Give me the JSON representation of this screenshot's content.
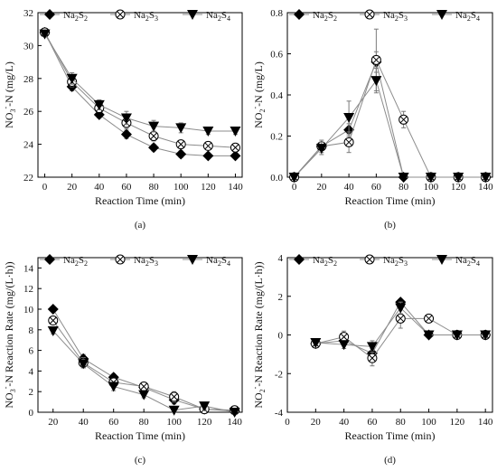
{
  "colors": {
    "series_line": "#8c8c8c",
    "marker": "#000000",
    "axis": "#000000",
    "error_bar": "#7a7a7a"
  },
  "chart_data": [
    {
      "type": "line",
      "caption": "(a)",
      "xlabel": "Reaction Time (min)",
      "ylabel": {
        "base": "NO",
        "sub": "3",
        "sup": "-",
        "rest": "-N  (mg/L)"
      },
      "xlim": [
        -5,
        145
      ],
      "ylim": [
        22,
        32
      ],
      "xticks": [
        0,
        20,
        40,
        60,
        80,
        100,
        120,
        140
      ],
      "yticks": [
        22,
        24,
        26,
        28,
        30,
        32
      ],
      "x": [
        0,
        20,
        40,
        60,
        80,
        100,
        120,
        140
      ],
      "series": [
        {
          "name": "Na2S2",
          "label": {
            "pre": "Na",
            "s1": "2",
            "mid": "S",
            "s2": "2"
          },
          "marker": "diamond",
          "values": [
            30.8,
            27.5,
            25.8,
            24.6,
            23.8,
            23.4,
            23.3,
            23.3
          ],
          "err": [
            0.15,
            0.25,
            0.2,
            0.25,
            0.2,
            0.2,
            0.15,
            0.15
          ]
        },
        {
          "name": "Na2S3",
          "label": {
            "pre": "Na",
            "s1": "2",
            "mid": "S",
            "s2": "3"
          },
          "marker": "circle-x",
          "values": [
            30.8,
            27.8,
            26.2,
            25.3,
            24.5,
            24.0,
            23.9,
            23.8
          ],
          "err": [
            0.15,
            0.3,
            0.25,
            0.35,
            0.3,
            0.25,
            0.2,
            0.2
          ]
        },
        {
          "name": "Na2S4",
          "label": {
            "pre": "Na",
            "s1": "2",
            "mid": "S",
            "s2": "4"
          },
          "marker": "triangle-down",
          "values": [
            30.7,
            28.0,
            26.4,
            25.6,
            25.1,
            25.0,
            24.8,
            24.8
          ],
          "err": [
            0.15,
            0.35,
            0.3,
            0.4,
            0.35,
            0.3,
            0.2,
            0.2
          ]
        }
      ]
    },
    {
      "type": "line",
      "caption": "(b)",
      "xlabel": "Reaction Time (min)",
      "ylabel": {
        "base": "NO",
        "sub": "2",
        "sup": "-",
        "rest": "-N  (mg/L)"
      },
      "xlim": [
        -5,
        145
      ],
      "ylim": [
        0,
        0.8
      ],
      "xticks": [
        0,
        20,
        40,
        60,
        80,
        100,
        120,
        140
      ],
      "yticks": [
        0.0,
        0.2,
        0.4,
        0.6,
        0.8
      ],
      "x": [
        0,
        20,
        40,
        60,
        80,
        100,
        120,
        140
      ],
      "series": [
        {
          "name": "Na2S2",
          "label": {
            "pre": "Na",
            "s1": "2",
            "mid": "S",
            "s2": "2"
          },
          "marker": "diamond",
          "values": [
            0.0,
            0.15,
            0.23,
            0.56,
            0.0,
            0.0,
            0.0,
            0.0
          ],
          "err": [
            0.005,
            0.02,
            0.03,
            0.05,
            0.005,
            0.005,
            0.005,
            0.005
          ]
        },
        {
          "name": "Na2S3",
          "label": {
            "pre": "Na",
            "s1": "2",
            "mid": "S",
            "s2": "3"
          },
          "marker": "circle-x",
          "values": [
            0.0,
            0.15,
            0.17,
            0.57,
            0.28,
            0.0,
            0.0,
            0.0
          ],
          "err": [
            0.005,
            0.03,
            0.05,
            0.15,
            0.04,
            0.005,
            0.005,
            0.005
          ]
        },
        {
          "name": "Na2S4",
          "label": {
            "pre": "Na",
            "s1": "2",
            "mid": "S",
            "s2": "4"
          },
          "marker": "triangle-down",
          "values": [
            0.0,
            0.14,
            0.29,
            0.47,
            0.0,
            0.0,
            0.0,
            0.0
          ],
          "err": [
            0.005,
            0.03,
            0.08,
            0.06,
            0.005,
            0.005,
            0.005,
            0.005
          ]
        }
      ]
    },
    {
      "type": "line",
      "caption": "(c)",
      "xlabel": "Reaction Time (min)",
      "ylabel": {
        "base": "NO",
        "sub": "3",
        "sup": "-",
        "rest": "-N Reaction Rate  (mg/(L·h))"
      },
      "xlim": [
        10,
        145
      ],
      "ylim": [
        0,
        15
      ],
      "xticks": [
        20,
        40,
        60,
        80,
        100,
        120,
        140
      ],
      "yticks": [
        0,
        2,
        4,
        6,
        8,
        10,
        12,
        14
      ],
      "x": [
        20,
        40,
        60,
        80,
        100,
        120,
        140
      ],
      "series": [
        {
          "name": "Na2S2",
          "label": {
            "pre": "Na",
            "s1": "2",
            "mid": "S",
            "s2": "2"
          },
          "marker": "diamond",
          "values": [
            10.0,
            5.2,
            3.4,
            2.4,
            1.2,
            0.3,
            0.1
          ],
          "err": [
            0.2,
            0.4,
            0.3,
            0.3,
            0.4,
            0.3,
            0.2
          ]
        },
        {
          "name": "Na2S3",
          "label": {
            "pre": "Na",
            "s1": "2",
            "mid": "S",
            "s2": "3"
          },
          "marker": "circle-x",
          "values": [
            8.9,
            4.8,
            2.9,
            2.5,
            1.5,
            0.3,
            0.2
          ],
          "err": [
            0.3,
            0.5,
            0.4,
            0.4,
            0.5,
            0.4,
            0.3
          ]
        },
        {
          "name": "Na2S4",
          "label": {
            "pre": "Na",
            "s1": "2",
            "mid": "S",
            "s2": "4"
          },
          "marker": "triangle-down",
          "values": [
            7.9,
            4.7,
            2.5,
            1.7,
            0.2,
            0.6,
            0.0
          ],
          "err": [
            0.3,
            0.4,
            0.4,
            0.3,
            0.2,
            0.3,
            0.2
          ]
        }
      ]
    },
    {
      "type": "line",
      "caption": "(d)",
      "xlabel": "Reaction Time (min)",
      "ylabel": {
        "base": "NO",
        "sub": "2",
        "sup": "-",
        "rest": "-N Reaction Rate  (mg/(L·h))"
      },
      "xlim": [
        0,
        145
      ],
      "ylim": [
        -4,
        4
      ],
      "xticks": [
        0,
        20,
        40,
        60,
        80,
        100,
        120,
        140
      ],
      "yticks": [
        -4,
        -2,
        0,
        2,
        4
      ],
      "x": [
        20,
        40,
        60,
        80,
        100,
        120,
        140
      ],
      "series": [
        {
          "name": "Na2S2",
          "label": {
            "pre": "Na",
            "s1": "2",
            "mid": "S",
            "s2": "2"
          },
          "marker": "diamond",
          "values": [
            -0.45,
            -0.3,
            -0.95,
            1.7,
            0.0,
            0.0,
            0.0
          ],
          "err": [
            0.1,
            0.15,
            0.25,
            0.15,
            0.05,
            0.05,
            0.05
          ]
        },
        {
          "name": "Na2S3",
          "label": {
            "pre": "Na",
            "s1": "2",
            "mid": "S",
            "s2": "3"
          },
          "marker": "circle-x",
          "values": [
            -0.45,
            -0.1,
            -1.2,
            0.85,
            0.85,
            0.0,
            0.0
          ],
          "err": [
            0.15,
            0.3,
            0.4,
            0.5,
            0.15,
            0.05,
            0.05
          ]
        },
        {
          "name": "Na2S4",
          "label": {
            "pre": "Na",
            "s1": "2",
            "mid": "S",
            "s2": "4"
          },
          "marker": "triangle-down",
          "values": [
            -0.4,
            -0.5,
            -0.6,
            1.4,
            0.0,
            0.0,
            0.0
          ],
          "err": [
            0.1,
            0.2,
            0.3,
            0.3,
            0.05,
            0.05,
            0.05
          ]
        }
      ]
    }
  ]
}
